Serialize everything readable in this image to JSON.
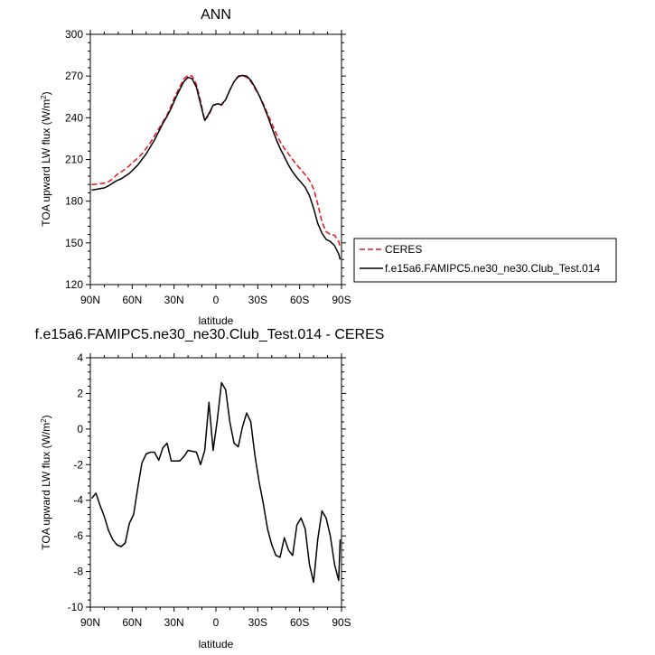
{
  "chart_data": [
    {
      "type": "line",
      "title": "ANN",
      "xlabel": "latitude",
      "ylabel": "TOA upward LW flux (W/m2)",
      "ylabel_main": "TOA upward LW flux (W/m",
      "ylabel_sup": "2",
      "ylabel_end": ")",
      "xlim": [
        90,
        -90
      ],
      "ylim": [
        120,
        300
      ],
      "x_ticks": [
        90,
        60,
        30,
        0,
        -30,
        -60,
        -90
      ],
      "x_tick_labels": [
        "90N",
        "60N",
        "30N",
        "0",
        "30S",
        "60S",
        "90S"
      ],
      "y_ticks": [
        120,
        150,
        180,
        210,
        240,
        270,
        300
      ],
      "y_tick_labels": [
        "120",
        "150",
        "180",
        "210",
        "240",
        "270",
        "300"
      ],
      "legend": [
        "CERES",
        "f.e15a6.FAMIPC5.ne30_ne30.Club_Test.014"
      ],
      "series": [
        {
          "name": "CERES",
          "color": "#e8131a",
          "dash": "dashed",
          "x": [
            89,
            86,
            83,
            80,
            77,
            74,
            71,
            68,
            65,
            62,
            59,
            56,
            53,
            50,
            47,
            44,
            41,
            38,
            35,
            32,
            29,
            26,
            23,
            20,
            17,
            14,
            11,
            8,
            5,
            2,
            -1,
            -4,
            -7,
            -10,
            -13,
            -16,
            -19,
            -22,
            -25,
            -28,
            -31,
            -34,
            -37,
            -40,
            -43,
            -46,
            -49,
            -52,
            -55,
            -58,
            -61,
            -64,
            -67,
            -70,
            -73,
            -76,
            -79,
            -82,
            -85,
            -88,
            -89
          ],
          "y": [
            192,
            192.2,
            192.5,
            193,
            194,
            196,
            199,
            201,
            203,
            205.5,
            208.5,
            211,
            214,
            218,
            222,
            227,
            232,
            237,
            242,
            249,
            256,
            262,
            268,
            270.5,
            270,
            264,
            252,
            238,
            242,
            249,
            250,
            249,
            253,
            260,
            266,
            270,
            270.5,
            269,
            266,
            261,
            256,
            250,
            243,
            236,
            229,
            223,
            218,
            214,
            210,
            206,
            202.5,
            199,
            195,
            189,
            178,
            165,
            158,
            156,
            155.5,
            151,
            147
          ]
        },
        {
          "name": "f.e15a6.FAMIPC5.ne30_ne30.Club_Test.014",
          "color": "#000000",
          "dash": "solid",
          "x": [
            89,
            86,
            83,
            80,
            77,
            74,
            71,
            68,
            65,
            62,
            59,
            56,
            53,
            50,
            47,
            44,
            41,
            38,
            35,
            32,
            29,
            26,
            23,
            20,
            17,
            14,
            11,
            8,
            5,
            2,
            -1,
            -4,
            -7,
            -10,
            -13,
            -16,
            -19,
            -22,
            -25,
            -28,
            -31,
            -34,
            -37,
            -40,
            -43,
            -46,
            -49,
            -52,
            -55,
            -58,
            -61,
            -64,
            -67,
            -70,
            -73,
            -76,
            -79,
            -82,
            -85,
            -88,
            -89
          ],
          "y": [
            188,
            188.5,
            189,
            189.5,
            191,
            193,
            194.8,
            196,
            198,
            200,
            203,
            206,
            210,
            214,
            219,
            224,
            230,
            236,
            241,
            247,
            254,
            260,
            266,
            269,
            268,
            262,
            250,
            238,
            243,
            249,
            250,
            249.5,
            253,
            260,
            266,
            269.5,
            270.5,
            270,
            267,
            262,
            256,
            249,
            241.5,
            233,
            225,
            218,
            212,
            206,
            201,
            197,
            193.5,
            190,
            184,
            175,
            164,
            157,
            152.5,
            151,
            148,
            142,
            138
          ]
        }
      ]
    },
    {
      "type": "line",
      "title": "f.e15a6.FAMIPC5.ne30_ne30.Club_Test.014 - CERES",
      "xlabel": "latitude",
      "ylabel": "TOA upward LW flux (W/m2)",
      "ylabel_main": "TOA upward LW flux (W/m",
      "ylabel_sup": "2",
      "ylabel_end": ")",
      "xlim": [
        90,
        -90
      ],
      "ylim": [
        -10,
        4
      ],
      "x_ticks": [
        90,
        60,
        30,
        0,
        -30,
        -60,
        -90
      ],
      "x_tick_labels": [
        "90N",
        "60N",
        "30N",
        "0",
        "30S",
        "60S",
        "90S"
      ],
      "y_ticks": [
        -10,
        -8,
        -6,
        -4,
        -2,
        0,
        2,
        4
      ],
      "y_tick_labels": [
        "-10",
        "-8",
        "-6",
        "-4",
        "-2",
        "0",
        "2",
        "4"
      ],
      "series": [
        {
          "color": "#000000",
          "dash": "solid",
          "x": [
            89,
            86,
            83,
            80,
            77,
            74,
            71,
            68,
            65,
            62,
            59,
            56,
            53,
            50,
            47,
            44,
            41,
            38,
            35,
            32,
            29,
            26,
            23,
            20,
            17,
            14,
            11,
            8,
            5,
            2,
            -1,
            -4,
            -7,
            -10,
            -13,
            -16,
            -19,
            -22,
            -25,
            -28,
            -31,
            -34,
            -37,
            -40,
            -43,
            -46,
            -49,
            -52,
            -55,
            -58,
            -61,
            -64,
            -67,
            -70,
            -73,
            -76,
            -79,
            -82,
            -85,
            -88,
            -89
          ],
          "y": [
            -3.9,
            -3.6,
            -4.3,
            -4.9,
            -5.7,
            -6.2,
            -6.5,
            -6.6,
            -6.4,
            -5.3,
            -4.8,
            -3.3,
            -1.9,
            -1.4,
            -1.3,
            -1.3,
            -1.75,
            -1.05,
            -0.8,
            -1.8,
            -1.8,
            -1.8,
            -1.55,
            -1.2,
            -1.25,
            -1.3,
            -2.0,
            -1.2,
            1.5,
            -1.2,
            0.5,
            2.6,
            2.2,
            0.4,
            -0.8,
            -1.0,
            0.1,
            0.9,
            0.4,
            -1.5,
            -3.0,
            -4.2,
            -5.6,
            -6.5,
            -7.1,
            -7.2,
            -6.1,
            -6.8,
            -7.1,
            -5.4,
            -5.0,
            -5.6,
            -7.6,
            -8.6,
            -6.2,
            -4.6,
            -5.0,
            -6.0,
            -7.6,
            -8.5,
            -6.2
          ]
        }
      ]
    }
  ]
}
